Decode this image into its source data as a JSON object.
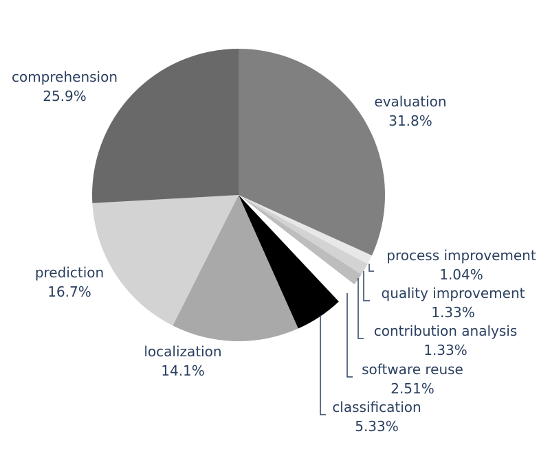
{
  "chart_data": {
    "type": "pie",
    "title": "",
    "slices": [
      {
        "label": "evaluation",
        "value": 31.8,
        "value_label": "31.8%",
        "color": "#808080"
      },
      {
        "label": "process improvement",
        "value": 1.04,
        "value_label": "1.04%",
        "color": "#e8e8e8"
      },
      {
        "label": "quality improvement",
        "value": 1.33,
        "value_label": "1.33%",
        "color": "#d3d3d3"
      },
      {
        "label": "contribution analysis",
        "value": 1.33,
        "value_label": "1.33%",
        "color": "#bdbdbd"
      },
      {
        "label": "software reuse",
        "value": 2.51,
        "value_label": "2.51%",
        "color": "#ffffff"
      },
      {
        "label": "classification",
        "value": 5.33,
        "value_label": "5.33%",
        "color": "#000000"
      },
      {
        "label": "localization",
        "value": 14.1,
        "value_label": "14.1%",
        "color": "#a9a9a9"
      },
      {
        "label": "prediction",
        "value": 16.7,
        "value_label": "16.7%",
        "color": "#d3d3d3"
      },
      {
        "label": "comprehension",
        "value": 25.9,
        "value_label": "25.9%",
        "color": "#696969"
      }
    ],
    "direction": "clockwise",
    "start": "12 o'clock",
    "legend": "none",
    "label_color": "#2a3f5f"
  }
}
